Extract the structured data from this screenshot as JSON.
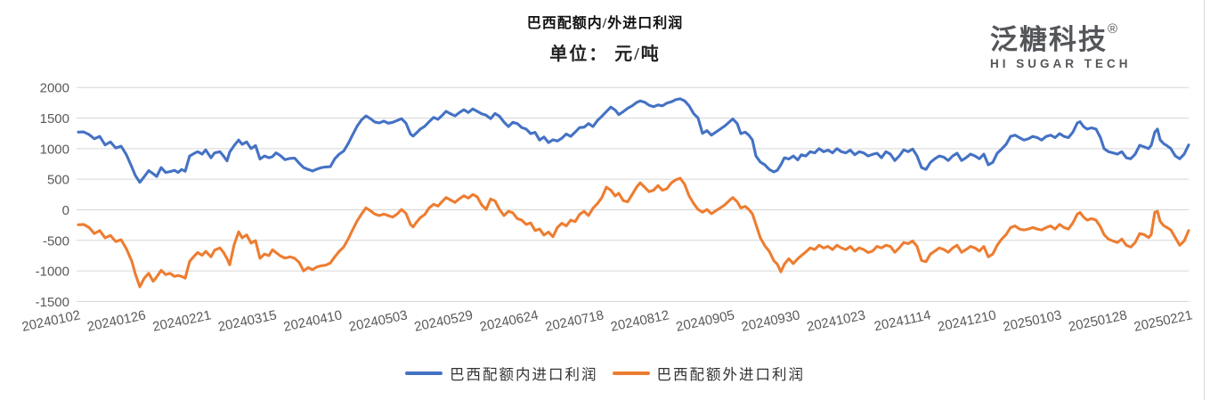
{
  "header": {
    "title": "巴西配额内/外进口利润",
    "subtitle": "单位： 元/吨"
  },
  "logo": {
    "brand": "泛糖科技",
    "registered": "®",
    "tagline": "HI SUGAR TECH"
  },
  "colors": {
    "series_in_quota": "#4472C4",
    "series_out_quota": "#ED7D31",
    "grid": "#D6D6D6",
    "axis_text": "#595959",
    "logo_text": "#54565A"
  },
  "chart_data": {
    "type": "line",
    "title": "巴西配额内/外进口利润",
    "unit": "单位： 元/吨",
    "ylim": [
      -1500,
      2000
    ],
    "y_ticks": [
      2000,
      1500,
      1000,
      500,
      0,
      -500,
      -1000,
      -1500
    ],
    "x_ticks": [
      "20240102",
      "20240126",
      "20240221",
      "20240315",
      "20240410",
      "20240503",
      "20240529",
      "20240624",
      "20240718",
      "20240812",
      "20240905",
      "20240930",
      "20241023",
      "20241114",
      "20241210",
      "20250103",
      "20250128",
      "20250221"
    ],
    "grid": "horizontal",
    "legend_position": "bottom",
    "t_range": [
      0,
      1249
    ],
    "t": [
      2,
      8,
      14,
      20,
      26,
      32,
      38,
      44,
      50,
      56,
      62,
      66,
      71,
      76,
      81,
      86,
      90,
      95,
      100,
      105,
      110,
      114,
      118,
      122,
      127,
      132,
      136,
      141,
      145,
      151,
      155,
      161,
      165,
      169,
      172,
      177,
      182,
      186,
      191,
      196,
      201,
      206,
      211,
      216,
      220,
      224,
      229,
      234,
      240,
      245,
      250,
      255,
      260,
      265,
      270,
      275,
      280,
      285,
      290,
      295,
      300,
      305,
      310,
      315,
      320,
      325,
      330,
      335,
      340,
      345,
      350,
      355,
      360,
      365,
      370,
      375,
      378,
      382,
      386,
      391,
      396,
      401,
      406,
      411,
      415,
      420,
      425,
      430,
      435,
      440,
      445,
      450,
      455,
      460,
      465,
      470,
      475,
      480,
      485,
      490,
      495,
      500,
      505,
      510,
      515,
      520,
      525,
      530,
      535,
      540,
      545,
      550,
      555,
      560,
      565,
      570,
      575,
      580,
      585,
      590,
      595,
      600,
      605,
      609,
      614,
      619,
      624,
      629,
      633,
      638,
      643,
      648,
      653,
      658,
      663,
      668,
      673,
      678,
      683,
      688,
      693,
      698,
      703,
      708,
      713,
      718,
      723,
      728,
      733,
      737,
      742,
      746,
      751,
      755,
      759,
      763,
      768,
      773,
      778,
      783,
      787,
      791,
      795,
      800,
      805,
      810,
      814,
      819,
      824,
      829,
      834,
      839,
      844,
      849,
      854,
      859,
      864,
      869,
      874,
      879,
      884,
      889,
      894,
      899,
      904,
      909,
      914,
      919,
      924,
      929,
      934,
      939,
      944,
      949,
      954,
      959,
      964,
      969,
      974,
      979,
      984,
      989,
      994,
      999,
      1004,
      1009,
      1014,
      1019,
      1024,
      1029,
      1034,
      1039,
      1044,
      1049,
      1054,
      1059,
      1064,
      1069,
      1074,
      1079,
      1084,
      1089,
      1094,
      1099,
      1104,
      1109,
      1114,
      1119,
      1124,
      1127,
      1131,
      1135,
      1140,
      1145,
      1150,
      1154,
      1159,
      1164,
      1169,
      1174,
      1179,
      1184,
      1189,
      1194,
      1199,
      1204,
      1207,
      1211,
      1214,
      1217,
      1221,
      1224,
      1229,
      1234,
      1239,
      1244,
      1249
    ],
    "series": [
      {
        "name": "巴西配额内进口利润",
        "color": "#4472C4",
        "values": [
          1270,
          1273,
          1230,
          1160,
          1200,
          1060,
          1110,
          1010,
          1040,
          900,
          700,
          560,
          450,
          540,
          640,
          590,
          545,
          690,
          610,
          625,
          645,
          610,
          660,
          630,
          880,
          920,
          950,
          910,
          980,
          850,
          930,
          950,
          880,
          800,
          945,
          1050,
          1140,
          1070,
          1110,
          1000,
          1050,
          830,
          880,
          850,
          870,
          930,
          885,
          820,
          840,
          845,
          760,
          690,
          660,
          635,
          665,
          690,
          700,
          705,
          835,
          910,
          960,
          1080,
          1225,
          1365,
          1470,
          1535,
          1490,
          1435,
          1420,
          1450,
          1415,
          1430,
          1460,
          1490,
          1415,
          1240,
          1205,
          1260,
          1320,
          1365,
          1440,
          1510,
          1480,
          1550,
          1610,
          1570,
          1535,
          1590,
          1635,
          1590,
          1650,
          1610,
          1570,
          1545,
          1490,
          1575,
          1530,
          1435,
          1360,
          1430,
          1410,
          1345,
          1320,
          1245,
          1265,
          1140,
          1190,
          1100,
          1145,
          1125,
          1170,
          1240,
          1200,
          1270,
          1345,
          1350,
          1410,
          1360,
          1460,
          1530,
          1605,
          1680,
          1630,
          1555,
          1605,
          1660,
          1700,
          1755,
          1780,
          1760,
          1710,
          1685,
          1715,
          1700,
          1745,
          1765,
          1800,
          1815,
          1780,
          1700,
          1575,
          1500,
          1250,
          1295,
          1220,
          1270,
          1320,
          1370,
          1435,
          1485,
          1410,
          1245,
          1270,
          1220,
          1145,
          880,
          780,
          735,
          660,
          620,
          645,
          735,
          850,
          830,
          880,
          815,
          900,
          880,
          950,
          930,
          1000,
          950,
          975,
          930,
          1000,
          950,
          930,
          975,
          900,
          950,
          930,
          880,
          905,
          925,
          850,
          950,
          910,
          805,
          880,
          980,
          950,
          995,
          880,
          690,
          660,
          775,
          835,
          880,
          860,
          805,
          880,
          925,
          805,
          850,
          910,
          880,
          835,
          910,
          735,
          775,
          925,
          995,
          1070,
          1200,
          1220,
          1180,
          1140,
          1160,
          1200,
          1180,
          1140,
          1200,
          1220,
          1180,
          1245,
          1200,
          1180,
          1270,
          1420,
          1440,
          1360,
          1320,
          1340,
          1320,
          1180,
          1000,
          950,
          930,
          910,
          950,
          850,
          835,
          910,
          1055,
          1030,
          1000,
          1055,
          1270,
          1320,
          1145,
          1080,
          1055,
          1000,
          880,
          835,
          910,
          1060
        ]
      },
      {
        "name": "巴西配额外进口利润",
        "color": "#ED7D31",
        "values": [
          -245,
          -240,
          -290,
          -390,
          -340,
          -460,
          -420,
          -520,
          -490,
          -640,
          -840,
          -1050,
          -1260,
          -1120,
          -1040,
          -1170,
          -1100,
          -990,
          -1060,
          -1040,
          -1090,
          -1075,
          -1090,
          -1120,
          -845,
          -760,
          -700,
          -745,
          -680,
          -770,
          -660,
          -625,
          -695,
          -800,
          -900,
          -570,
          -360,
          -460,
          -410,
          -545,
          -505,
          -795,
          -725,
          -750,
          -655,
          -700,
          -755,
          -790,
          -770,
          -795,
          -860,
          -1000,
          -945,
          -980,
          -935,
          -915,
          -905,
          -870,
          -770,
          -680,
          -610,
          -480,
          -330,
          -185,
          -70,
          30,
          -15,
          -70,
          -95,
          -70,
          -95,
          -120,
          -70,
          5,
          -60,
          -240,
          -280,
          -200,
          -130,
          -80,
          30,
          90,
          60,
          140,
          200,
          160,
          120,
          180,
          230,
          190,
          250,
          210,
          80,
          5,
          175,
          145,
          5,
          -95,
          -25,
          -50,
          -145,
          -170,
          -240,
          -215,
          -340,
          -315,
          -415,
          -365,
          -440,
          -290,
          -220,
          -265,
          -170,
          -195,
          -75,
          -25,
          -95,
          25,
          100,
          200,
          370,
          320,
          225,
          270,
          150,
          130,
          250,
          370,
          440,
          370,
          295,
          320,
          395,
          320,
          345,
          440,
          490,
          515,
          415,
          225,
          105,
          5,
          -40,
          5,
          -65,
          -15,
          30,
          80,
          150,
          200,
          130,
          30,
          55,
          5,
          -65,
          -240,
          -460,
          -590,
          -680,
          -830,
          -890,
          -1015,
          -890,
          -800,
          -880,
          -800,
          -750,
          -690,
          -625,
          -650,
          -580,
          -625,
          -600,
          -650,
          -580,
          -625,
          -650,
          -600,
          -675,
          -625,
          -650,
          -700,
          -675,
          -600,
          -625,
          -580,
          -600,
          -695,
          -625,
          -535,
          -555,
          -510,
          -600,
          -830,
          -850,
          -725,
          -675,
          -625,
          -650,
          -695,
          -625,
          -580,
          -695,
          -650,
          -600,
          -625,
          -675,
          -600,
          -770,
          -725,
          -580,
          -480,
          -405,
          -290,
          -265,
          -315,
          -330,
          -315,
          -290,
          -315,
          -330,
          -290,
          -265,
          -315,
          -240,
          -290,
          -315,
          -215,
          -70,
          -45,
          -120,
          -170,
          -145,
          -170,
          -280,
          -405,
          -480,
          -510,
          -535,
          -480,
          -580,
          -610,
          -535,
          -390,
          -405,
          -455,
          -405,
          -40,
          -25,
          -190,
          -260,
          -285,
          -330,
          -455,
          -580,
          -510,
          -340
        ]
      }
    ]
  }
}
